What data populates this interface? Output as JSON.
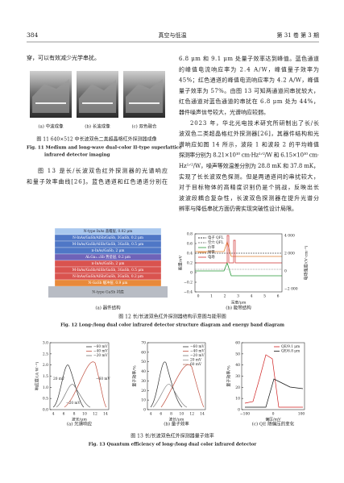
{
  "header": {
    "page": "384",
    "journal": "真空与低温",
    "issue": "第 31 卷 第 3 期"
  },
  "left_top": [
    "穿，可以有效减少光学串扰。"
  ],
  "fig11": {
    "panels": [
      "(a) 中波成像",
      "(b) 长波成像",
      "(c) 双色融合"
    ],
    "caption_cn": "图 11   640×512 中长波双色二类超晶格红外探测器成像",
    "caption_en": [
      "Fig. 11    Medium and long-wave dual-color II-type superlattice",
      "infrared detector imaging"
    ]
  },
  "left_bottom": [
    "图 13 是长/长波双色红外探测器的光谱响应",
    "和量子效率曲线[26]。蓝色通道和红色通道分别在"
  ],
  "right_text": [
    "6.8 μm 和 9.1 μm 处量子效率达到峰值。蓝色通道",
    "的峰值电流响应率为 2.4 A/W，峰值量子效率为",
    "45%；红色通道的峰值电流响应率为 4.2 A/W，峰值",
    "量子效率为 57%。由图 13 可知两通道间串扰较大，",
    "红色通道对蓝色通道的串扰在 6.8 μm 处为 44%，",
    "器件噪声信号较大，光谱响应较弱。",
    "2023 年，华北光电技术研究所研制出了长/长",
    "波双色二类超晶格红外探测器[26]，其器件结构和光",
    "谱响应如图 14 所示，波段 1 和波段 2 的平均峰值",
    "探测率分别为 8.21×10¹⁰ cm·Hz¹ᐟ²/W 和 6.15×10¹⁰ cm·",
    "Hz¹ᐟ²/W，噪声等效温差分别为 28.8 mK 和 37.8 mK，",
    "实现了长长波双色探测。但是两通道间的串扰较大，",
    "对于目标物体的高精度识别仍是个挑战，反映出长",
    "波波段耦合复杂性，长波双色探测器在提升光谱分",
    "辨率与降低串扰方面仍需实现突破性设计局限。"
  ],
  "fig12": {
    "layers": [
      "N-type InAs 盖帽层, 0.02 μm",
      "N-InAs/GaSb/AlSb/GaSb, 3GaSb, 0.2 μm",
      "M-InAs/GaSb/AlSb/GaSb, 3GaSb, 0.5 μm",
      "π-InAs/GaSb, 2 μm",
      "AlₓGa₁₋ₓSb 势垒层, 0.2 μm",
      "π-InAs/GaSb, 2 μm",
      "M-InAs/GaSb/AlSb/GaSb, 3GaSb, 0.5 μm",
      "N-InAs/GaSb/AlSb/GaSb, 3GaSb, 0.2 μm",
      "N-GaSb 缓冲层, 0.9 μm"
    ],
    "substrate": "N-type GaSb 衬底",
    "panel_a": "(a) 器件结构",
    "band": {
      "y_label": "能量/eV",
      "y_ticks": [
        "0.8",
        "0.6",
        "0.4",
        "0.2",
        "0",
        "−0.2",
        "−0.4"
      ],
      "y2_label": "电场强度/(V·cm⁻¹)",
      "y2_ticks": [
        "4 000",
        "2 000",
        "0",
        "−2 000"
      ],
      "x_label": "深度/μm",
      "x_ticks": [
        "0",
        "1",
        "2",
        "3",
        "4",
        "5",
        "6"
      ],
      "legend": [
        "电子 QFL",
        "空穴 QFL",
        "价带",
        "导带",
        "电场"
      ]
    },
    "panel_b": "(b) 能带结构",
    "caption_cn": "图 12   长/长波双色红外探测器结构示意图与能带图",
    "caption_en": "Fig. 12    Long-/long dual color infrared detector structure diagram and energy band diagram"
  },
  "fig13": {
    "charts": [
      {
        "y_label": "响应度/(A·W⁻¹)",
        "y_ticks": [
          "0.0",
          "0.5",
          "1.0",
          "1.5",
          "2.0",
          "2.5",
          "3.0"
        ],
        "x_label": "波长/μm",
        "x_ticks": [
          "4",
          "6",
          "8",
          "10",
          "12",
          "14"
        ],
        "legend": [
          "−60 mV",
          "−40 mV",
          "−20 mV"
        ],
        "notes": [
          "20 mV",
          "−60 mV",
          "−20 mV"
        ],
        "panel": "(a) 光谱响应"
      },
      {
        "y_label": "量子效率/%",
        "y_ticks": [
          "0",
          "10",
          "20",
          "30",
          "40",
          "50",
          "60",
          "70"
        ],
        "x_label": "波长/μm",
        "x_ticks": [
          "4",
          "6",
          "8",
          "10",
          "12",
          "14"
        ],
        "legend": [
          "−60 mV",
          "−40 mV",
          "−20 mV",
          "20 mV",
          "60 mV"
        ],
        "notes": [],
        "panel": "(b) 量子效率"
      },
      {
        "y_label": "量子效率/%",
        "y_ticks": [
          "0",
          "10",
          "20",
          "30",
          "40",
          "50",
          "60"
        ],
        "x_label": "偏压/mV",
        "x_ticks": [
          "−100",
          "0",
          "100"
        ],
        "legend": [
          "QE/9.1 μm",
          "QE/6.8 μm"
        ],
        "notes": [],
        "panel": "(c) QE 随偏压的变化"
      }
    ],
    "caption_cn": "图 13   长/长波双色红外探测器量子效率",
    "caption_en": "Fig. 13    Quantum efficiency of long-/long dual color infrared detector"
  }
}
